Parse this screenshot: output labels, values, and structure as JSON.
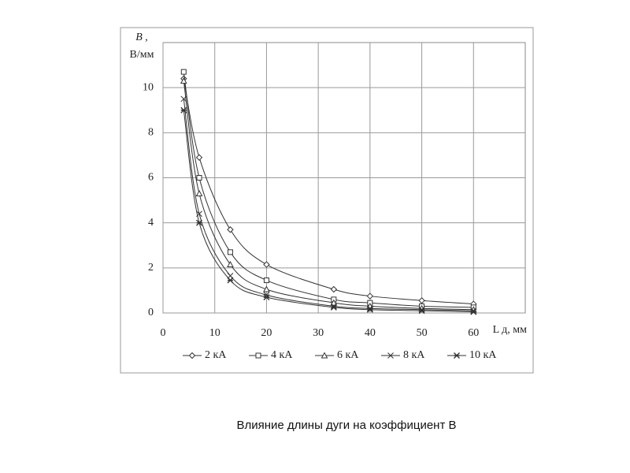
{
  "chart_data": {
    "type": "line",
    "caption": "Влияние длины дуги на коэффициент B",
    "ylabel": [
      "B ,",
      "В/мм"
    ],
    "xlabel": "L д, мм",
    "x": [
      4,
      7,
      13,
      20,
      33,
      40,
      50,
      60
    ],
    "series": [
      {
        "name": "2 кА",
        "color": "#333333",
        "marker": "diamond",
        "values": [
          10.4,
          6.9,
          3.7,
          2.15,
          1.05,
          0.75,
          0.55,
          0.4
        ]
      },
      {
        "name": "4 кА",
        "color": "#333333",
        "marker": "square",
        "values": [
          10.7,
          6.0,
          2.7,
          1.45,
          0.6,
          0.45,
          0.3,
          0.25
        ]
      },
      {
        "name": "6 кА",
        "color": "#333333",
        "marker": "triangle",
        "values": [
          10.3,
          5.3,
          2.15,
          1.05,
          0.45,
          0.3,
          0.2,
          0.15
        ]
      },
      {
        "name": "8 кА",
        "color": "#333333",
        "marker": "x",
        "values": [
          9.5,
          4.4,
          1.65,
          0.8,
          0.3,
          0.2,
          0.15,
          0.1
        ]
      },
      {
        "name": "10 кА",
        "color": "#333333",
        "marker": "asterisk",
        "values": [
          9.0,
          4.0,
          1.45,
          0.7,
          0.25,
          0.15,
          0.1,
          0.05
        ]
      }
    ],
    "xlim": [
      0,
      70
    ],
    "xticks": [
      0,
      10,
      20,
      30,
      40,
      50,
      60
    ],
    "ylim": [
      0,
      12
    ],
    "yticks": [
      0,
      2,
      4,
      6,
      8,
      10
    ],
    "grid": true,
    "legend": "bottom"
  }
}
